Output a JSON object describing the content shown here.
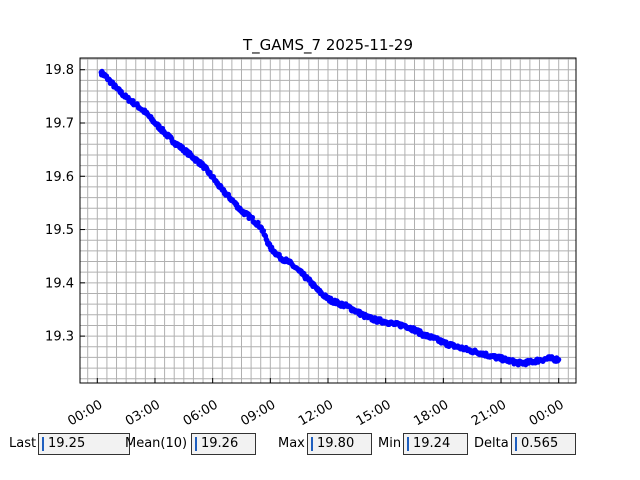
{
  "chart_data": {
    "type": "scatter",
    "title": "T_GAMS_7 2025-11-29",
    "xlabel": "",
    "ylabel": "",
    "x_unit": "hours",
    "xlim": [
      -0.9,
      24.9
    ],
    "ylim": [
      19.212,
      19.822
    ],
    "x_ticks": [
      0,
      3,
      6,
      9,
      12,
      15,
      18,
      21,
      24
    ],
    "x_tick_labels": [
      "00:00",
      "03:00",
      "06:00",
      "09:00",
      "12:00",
      "15:00",
      "18:00",
      "21:00",
      "00:00"
    ],
    "y_ticks": [
      19.3,
      19.4,
      19.5,
      19.6,
      19.7,
      19.8
    ],
    "y_tick_labels": [
      "19.3",
      "19.4",
      "19.5",
      "19.6",
      "19.7",
      "19.8"
    ],
    "grid": true,
    "marker_color": "#0000ff",
    "series": [
      {
        "x": [
          0.2,
          0.5,
          1.0,
          1.5,
          2.0,
          2.5,
          3.0,
          3.5,
          4.0,
          4.5,
          5.0,
          5.5,
          6.0,
          6.5,
          7.0,
          7.5,
          8.0,
          8.5,
          9.0,
          9.5,
          10.0,
          10.5,
          11.0,
          11.5,
          12.0,
          12.5,
          13.0,
          13.5,
          14.0,
          14.5,
          15.0,
          15.5,
          16.0,
          16.5,
          17.0,
          17.5,
          18.0,
          18.5,
          19.0,
          19.5,
          20.0,
          20.5,
          21.0,
          21.5,
          22.0,
          22.5,
          23.0,
          23.5,
          24.0
        ],
        "y": [
          19.795,
          19.785,
          19.765,
          19.748,
          19.735,
          19.72,
          19.7,
          19.682,
          19.664,
          19.65,
          19.635,
          19.62,
          19.598,
          19.574,
          19.556,
          19.535,
          19.522,
          19.505,
          19.466,
          19.448,
          19.438,
          19.422,
          19.405,
          19.385,
          19.37,
          19.362,
          19.356,
          19.346,
          19.336,
          19.33,
          19.327,
          19.322,
          19.32,
          19.312,
          19.302,
          19.296,
          19.288,
          19.282,
          19.277,
          19.272,
          19.268,
          19.262,
          19.258,
          19.253,
          19.249,
          19.251,
          19.255,
          19.258,
          19.256
        ]
      }
    ]
  },
  "stats": {
    "last_label": "Last",
    "last_value": "19.25",
    "mean_label": "Mean(10)",
    "mean_value": "19.26",
    "max_label": "Max",
    "max_value": "19.80",
    "min_label": "Min",
    "min_value": "19.24",
    "delta_label": "Delta",
    "delta_value": "0.565"
  }
}
